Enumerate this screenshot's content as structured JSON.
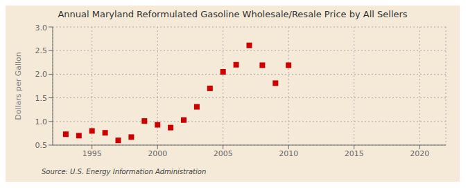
{
  "chart_data": {
    "type": "scatter",
    "title": "Annual Maryland Reformulated Gasoline Wholesale/Resale Price by All Sellers",
    "ylabel": "Dollars per Gallon",
    "annotation": "Source: U.S. Energy Information Administration",
    "x": [
      1993,
      1994,
      1995,
      1996,
      1997,
      1998,
      1999,
      2000,
      2001,
      2002,
      2003,
      2004,
      2005,
      2006,
      2007,
      2008,
      2009,
      2010
    ],
    "values": [
      0.73,
      0.7,
      0.8,
      0.76,
      0.6,
      0.67,
      1.01,
      0.93,
      0.87,
      1.03,
      1.31,
      1.7,
      2.05,
      2.2,
      2.61,
      2.19,
      1.81,
      2.19
    ],
    "xlim": [
      1992,
      2022
    ],
    "ylim": [
      0.5,
      3.0
    ],
    "xticks": [
      1995,
      2000,
      2005,
      2010,
      2015,
      2020
    ],
    "yticks": [
      0.5,
      {
        "value": 1,
        "label": "1.0"
      },
      1.5,
      {
        "value": 2,
        "label": "2.0"
      },
      2.5,
      {
        "value": 3,
        "label": "3.0"
      }
    ],
    "color": "#cc0000",
    "marker": "square",
    "grid": true
  }
}
